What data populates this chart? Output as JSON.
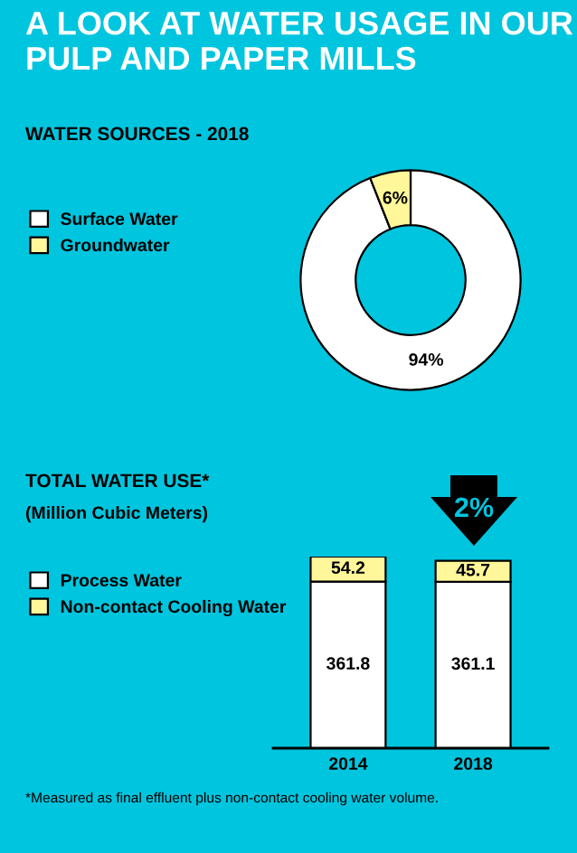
{
  "chart_data": [
    {
      "type": "donut",
      "title": "A LOOK AT WATER USAGE IN OUR PULP AND PAPER MILLS",
      "subtitle": "WATER SOURCES - 2018",
      "categories": [
        "Surface Water",
        "Groundwater"
      ],
      "values": [
        94,
        6
      ],
      "colors": [
        "#ffffff",
        "#fff799"
      ],
      "value_labels": [
        "94%",
        "6%"
      ],
      "legend": "left"
    },
    {
      "type": "bar",
      "stacked": true,
      "title": "TOTAL WATER USE*",
      "subtitle": "(Million Cubic Meters)",
      "categories": [
        "2014",
        "2018"
      ],
      "series": [
        {
          "name": "Process Water",
          "color": "#ffffff",
          "values": [
            361.8,
            361.1
          ]
        },
        {
          "name": "Non-contact Cooling Water",
          "color": "#fff799",
          "values": [
            54.2,
            45.7
          ]
        }
      ],
      "data_labels": true,
      "legend": "left",
      "grid": false,
      "annotations": [
        "2%",
        "*Measured as final effluent plus non-contact cooling water volume."
      ]
    }
  ]
}
